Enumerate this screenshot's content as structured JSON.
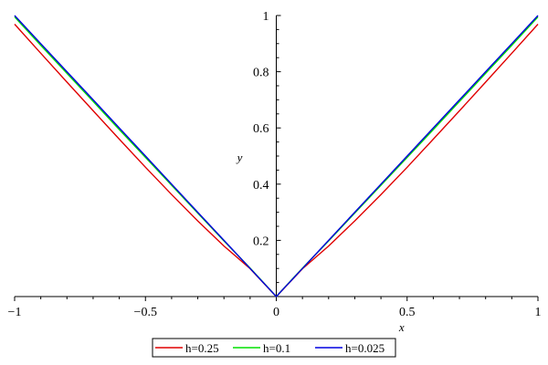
{
  "chart_data": {
    "type": "line",
    "title": "",
    "xlabel": "x",
    "ylabel": "y",
    "xlim": [
      -1,
      1
    ],
    "ylim": [
      0,
      1
    ],
    "x_ticks": [
      -1,
      -0.5,
      0,
      0.5,
      1
    ],
    "x_tick_labels": [
      "−1",
      "−0.5",
      "0",
      "0.5",
      "1"
    ],
    "y_ticks": [
      0.2,
      0.4,
      0.6,
      0.8,
      1
    ],
    "y_tick_labels": [
      "0.2",
      "0.4",
      "0.6",
      "0.8",
      "1"
    ],
    "grid": false,
    "legend_position": "bottom",
    "series": [
      {
        "name": "h=0.25",
        "color": "#e00000",
        "x": [
          -1,
          -0.9,
          -0.8,
          -0.7,
          -0.6,
          -0.5,
          -0.4,
          -0.3,
          -0.2,
          -0.1,
          0,
          0.1,
          0.2,
          0.3,
          0.4,
          0.5,
          0.6,
          0.7,
          0.8,
          0.9,
          1
        ],
        "y": [
          0.969,
          0.866,
          0.763,
          0.661,
          0.56,
          0.46,
          0.363,
          0.269,
          0.18,
          0.099,
          0.0,
          0.099,
          0.18,
          0.269,
          0.363,
          0.46,
          0.56,
          0.661,
          0.763,
          0.866,
          0.969
        ]
      },
      {
        "name": "h=0.1",
        "color": "#00e000",
        "x": [
          -1,
          -0.9,
          -0.8,
          -0.7,
          -0.6,
          -0.5,
          -0.4,
          -0.3,
          -0.2,
          -0.1,
          -0.05,
          0,
          0.05,
          0.1,
          0.2,
          0.3,
          0.4,
          0.5,
          0.6,
          0.7,
          0.8,
          0.9,
          1
        ],
        "y": [
          0.995,
          0.894,
          0.794,
          0.694,
          0.594,
          0.495,
          0.396,
          0.297,
          0.198,
          0.101,
          0.051,
          0.0,
          0.051,
          0.101,
          0.198,
          0.297,
          0.396,
          0.495,
          0.594,
          0.694,
          0.794,
          0.894,
          0.995
        ]
      },
      {
        "name": "h=0.025",
        "color": "#0000e0",
        "x": [
          -1,
          -0.9,
          -0.8,
          -0.7,
          -0.6,
          -0.5,
          -0.4,
          -0.3,
          -0.2,
          -0.1,
          -0.05,
          -0.02,
          0,
          0.02,
          0.05,
          0.1,
          0.2,
          0.3,
          0.4,
          0.5,
          0.6,
          0.7,
          0.8,
          0.9,
          1
        ],
        "y": [
          1.0,
          0.9,
          0.8,
          0.7,
          0.6,
          0.5,
          0.4,
          0.3,
          0.2,
          0.1,
          0.05,
          0.02,
          0.0,
          0.02,
          0.05,
          0.1,
          0.2,
          0.3,
          0.4,
          0.5,
          0.6,
          0.7,
          0.8,
          0.9,
          1.0
        ]
      }
    ]
  }
}
